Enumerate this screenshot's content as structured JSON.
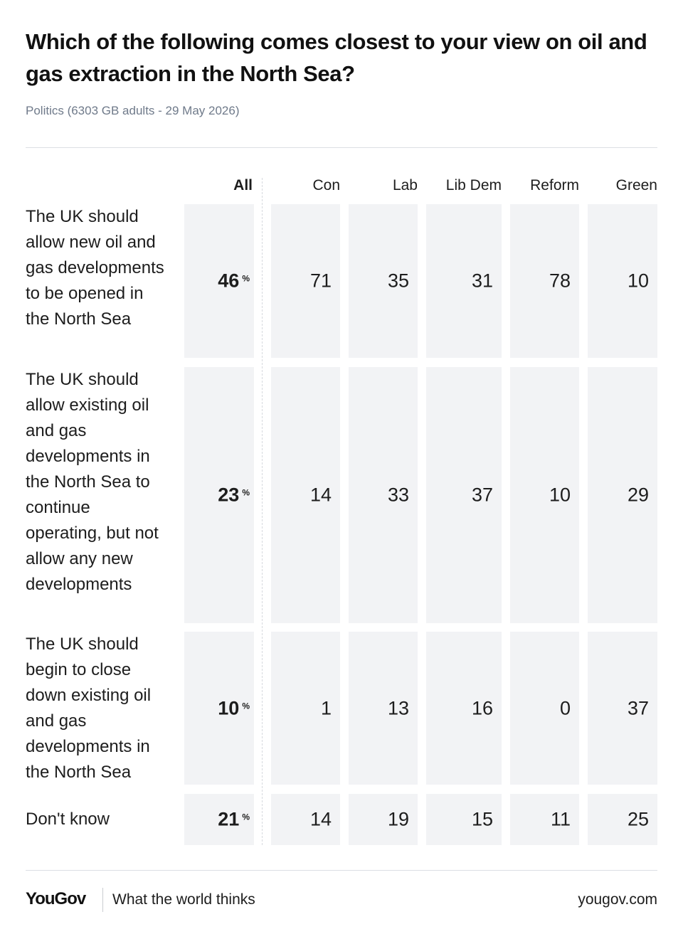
{
  "header": {
    "title": "Which of the following comes closest to your view on oil and gas extraction in the North Sea?",
    "subtitle": "Politics (6303 GB adults - 29 May 2026)"
  },
  "footer": {
    "logo": "YouGov",
    "tagline": "What the world thinks",
    "site": "yougov.com"
  },
  "colors": {
    "cell_bg": "#f2f3f5",
    "subtitle": "#6f7a8a",
    "text": "#1d1d1d"
  },
  "chart_data": {
    "type": "table",
    "title": "Which of the following comes closest to your view on oil and gas extraction in the North Sea?",
    "columns": [
      "All",
      "Con",
      "Lab",
      "Lib Dem",
      "Reform",
      "Green"
    ],
    "all_suffix": "%",
    "rows": [
      {
        "label": "The UK should allow new oil and gas developments to be opened in the North Sea",
        "values": [
          46,
          71,
          35,
          31,
          78,
          10
        ]
      },
      {
        "label": "The UK should allow existing oil and gas developments in the North Sea to continue operating, but not allow any new developments",
        "values": [
          23,
          14,
          33,
          37,
          10,
          29
        ]
      },
      {
        "label": "The UK should begin to close down existing oil and gas developments in the North Sea",
        "values": [
          10,
          1,
          13,
          16,
          0,
          37
        ]
      },
      {
        "label": "Don't know",
        "values": [
          21,
          14,
          19,
          15,
          11,
          25
        ]
      }
    ]
  }
}
